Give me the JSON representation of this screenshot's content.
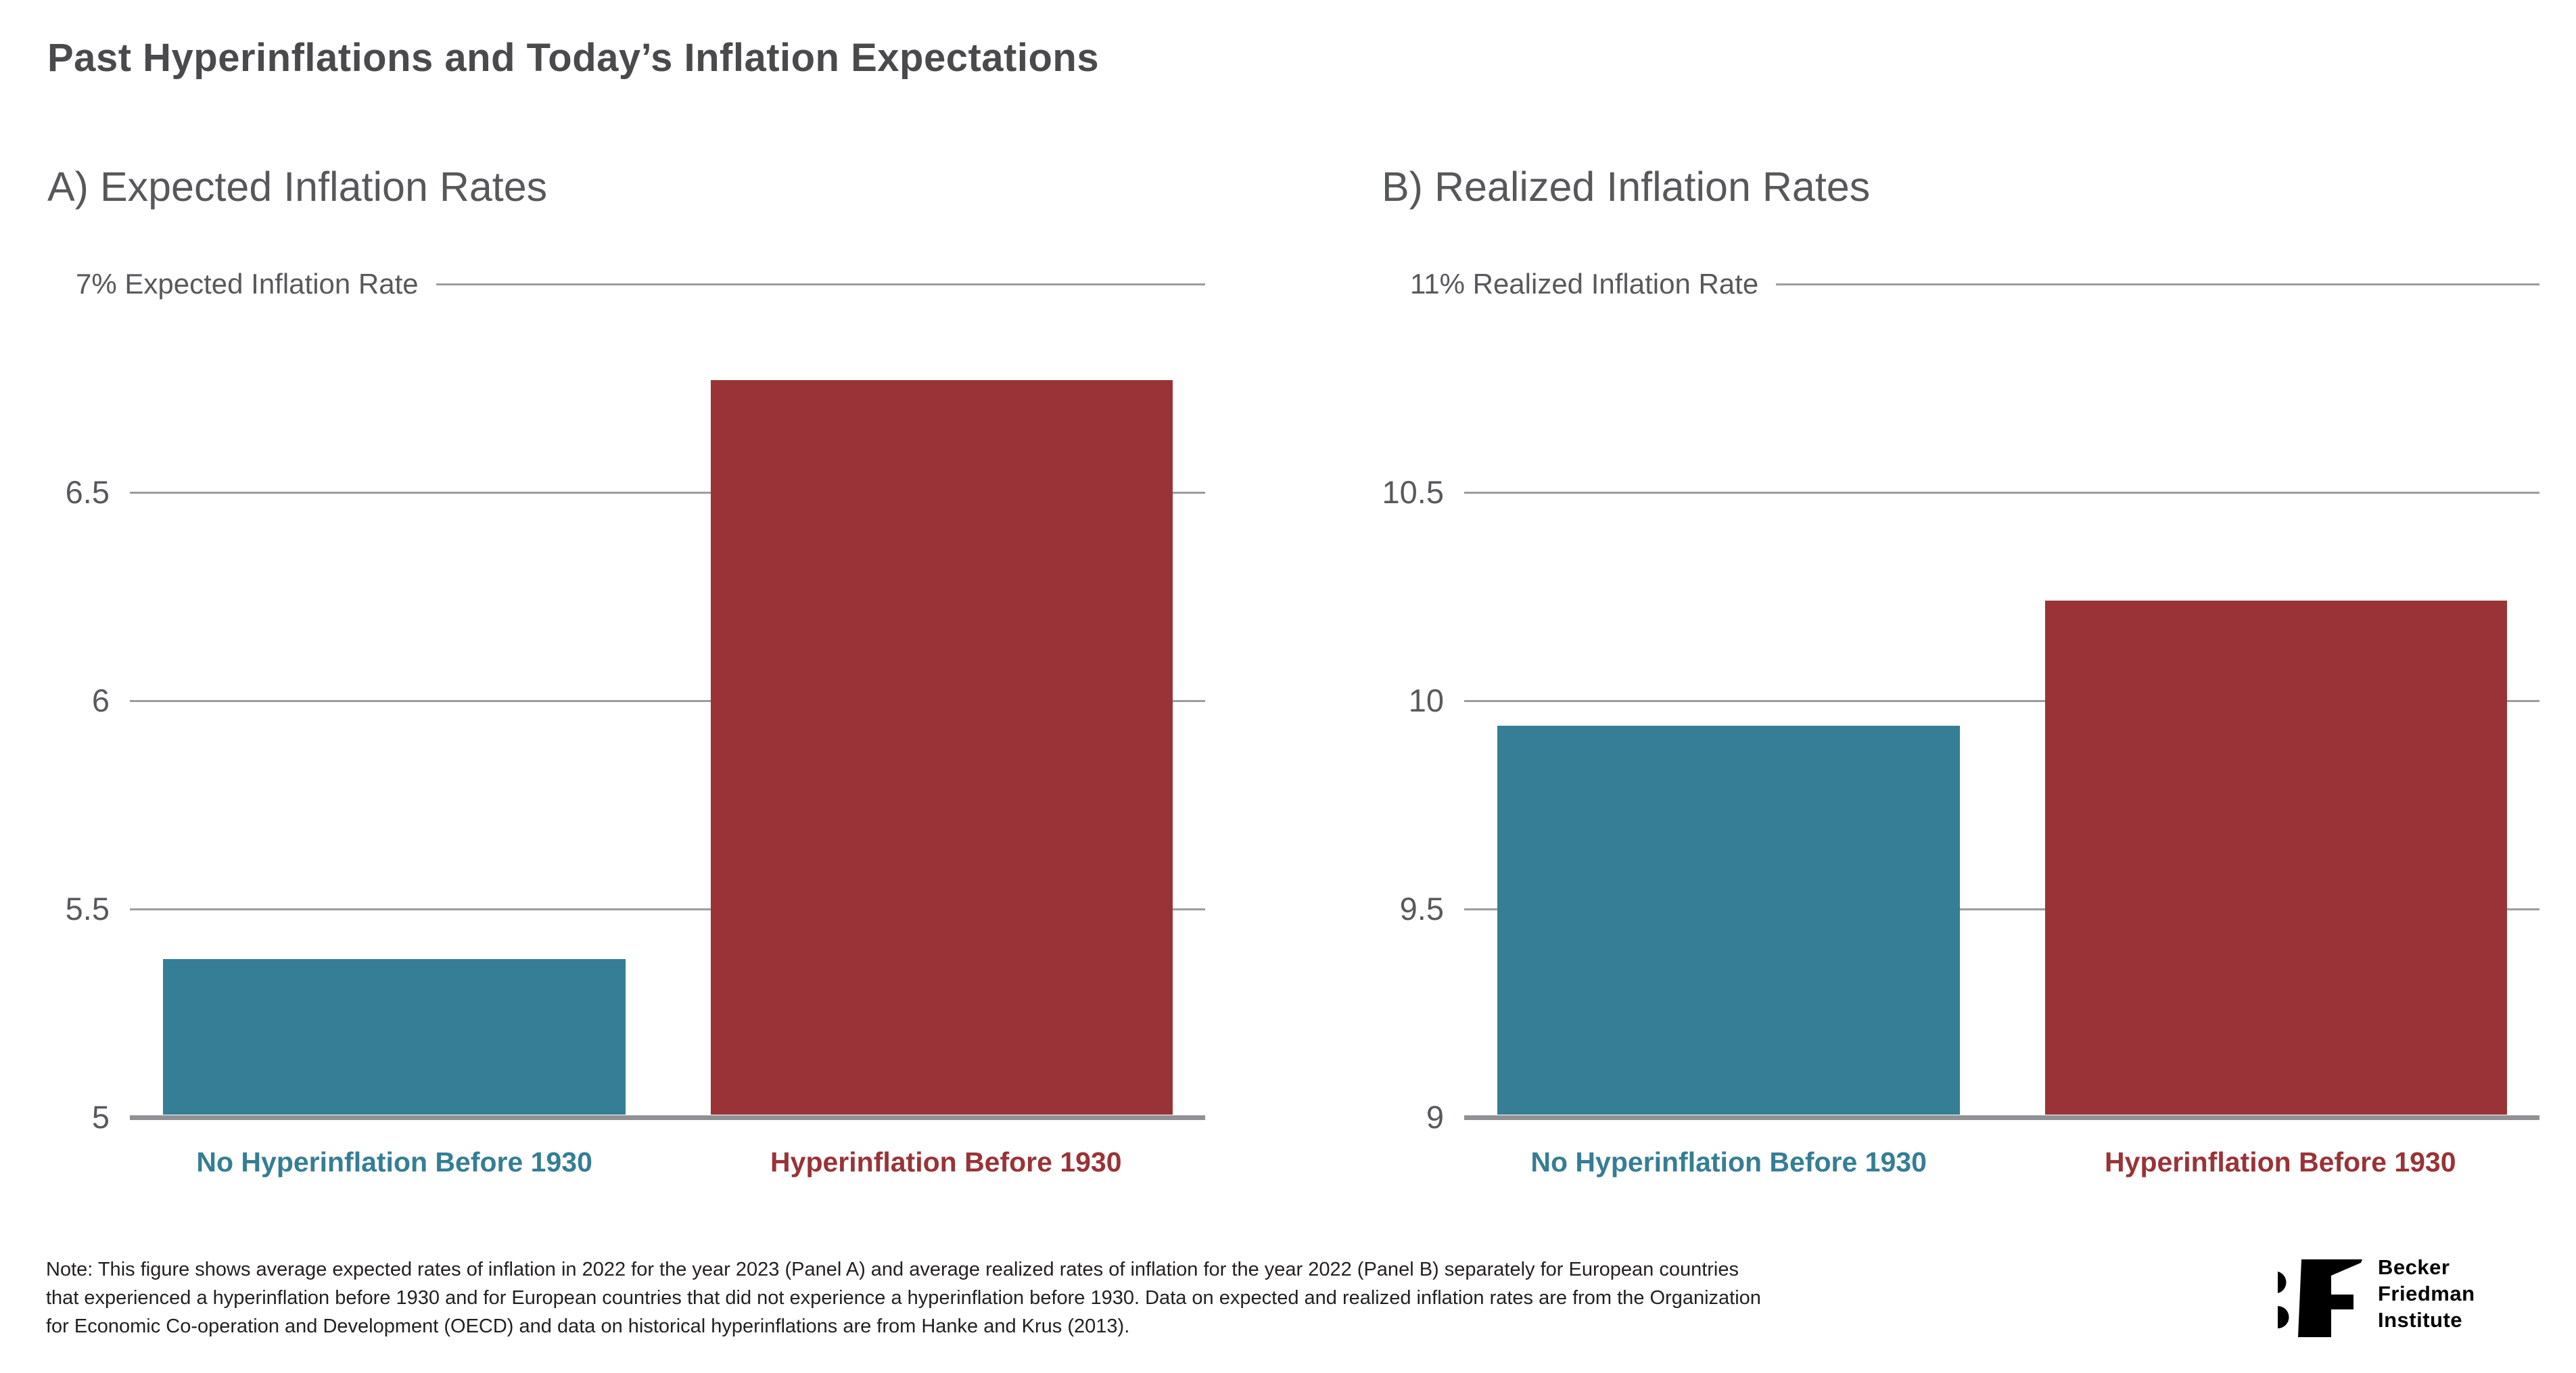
{
  "page": {
    "title": "Past Hyperinflations and Today’s Inflation Expectations"
  },
  "colors": {
    "teal": "#357E95",
    "red": "#993337",
    "grid": "#9B9C9F",
    "baseline": "#8F9194",
    "label_gray": "#58595B",
    "title_gray": "#4A4A4C",
    "note_black": "#231F20"
  },
  "chart_data": [
    {
      "type": "bar",
      "panel_label": "A) Expected Inflation Rates",
      "axis_top_label": "7% Expected Inflation Rate",
      "ylabel": "Expected Inflation Rate (%)",
      "ylim": [
        5,
        7
      ],
      "grid": "on",
      "legend": "none",
      "categories": [
        "No Hyperinflation Before 1930",
        "Hyperinflation Before 1930"
      ],
      "values": [
        5.38,
        6.77
      ],
      "bar_colors": [
        "teal",
        "red"
      ],
      "yticks": [
        {
          "value": 7,
          "label": ""
        },
        {
          "value": 6.5,
          "label": "6.5"
        },
        {
          "value": 6,
          "label": "6"
        },
        {
          "value": 5.5,
          "label": "5.5"
        },
        {
          "value": 5,
          "label": "5"
        }
      ]
    },
    {
      "type": "bar",
      "panel_label": "B) Realized Inflation Rates",
      "axis_top_label": "11% Realized Inflation Rate",
      "ylabel": "Realized Inflation Rate (%)",
      "ylim": [
        9,
        11
      ],
      "grid": "on",
      "legend": "none",
      "categories": [
        "No Hyperinflation Before 1930",
        "Hyperinflation Before 1930"
      ],
      "values": [
        9.94,
        10.24
      ],
      "bar_colors": [
        "teal",
        "red"
      ],
      "yticks": [
        {
          "value": 11,
          "label": ""
        },
        {
          "value": 10.5,
          "label": "10.5"
        },
        {
          "value": 10,
          "label": "10"
        },
        {
          "value": 9.5,
          "label": "9.5"
        },
        {
          "value": 9,
          "label": "9"
        }
      ]
    }
  ],
  "note": {
    "lines": [
      "Note: This figure shows average expected rates of inflation in 2022 for the year 2023 (Panel A) and average realized rates of inflation for the year 2022 (Panel B) separately for European countries",
      "that experienced a hyperinflation before 1930 and for European countries that did not experience a hyperinflation before 1930. Data on expected and realized inflation rates are from the Organization",
      "for Economic Co-operation and Development (OECD) and data on historical hyperinflations are from Hanke and Krus (2013)."
    ]
  },
  "logo": {
    "lines": [
      "Becker",
      "Friedman",
      "Institute"
    ]
  }
}
